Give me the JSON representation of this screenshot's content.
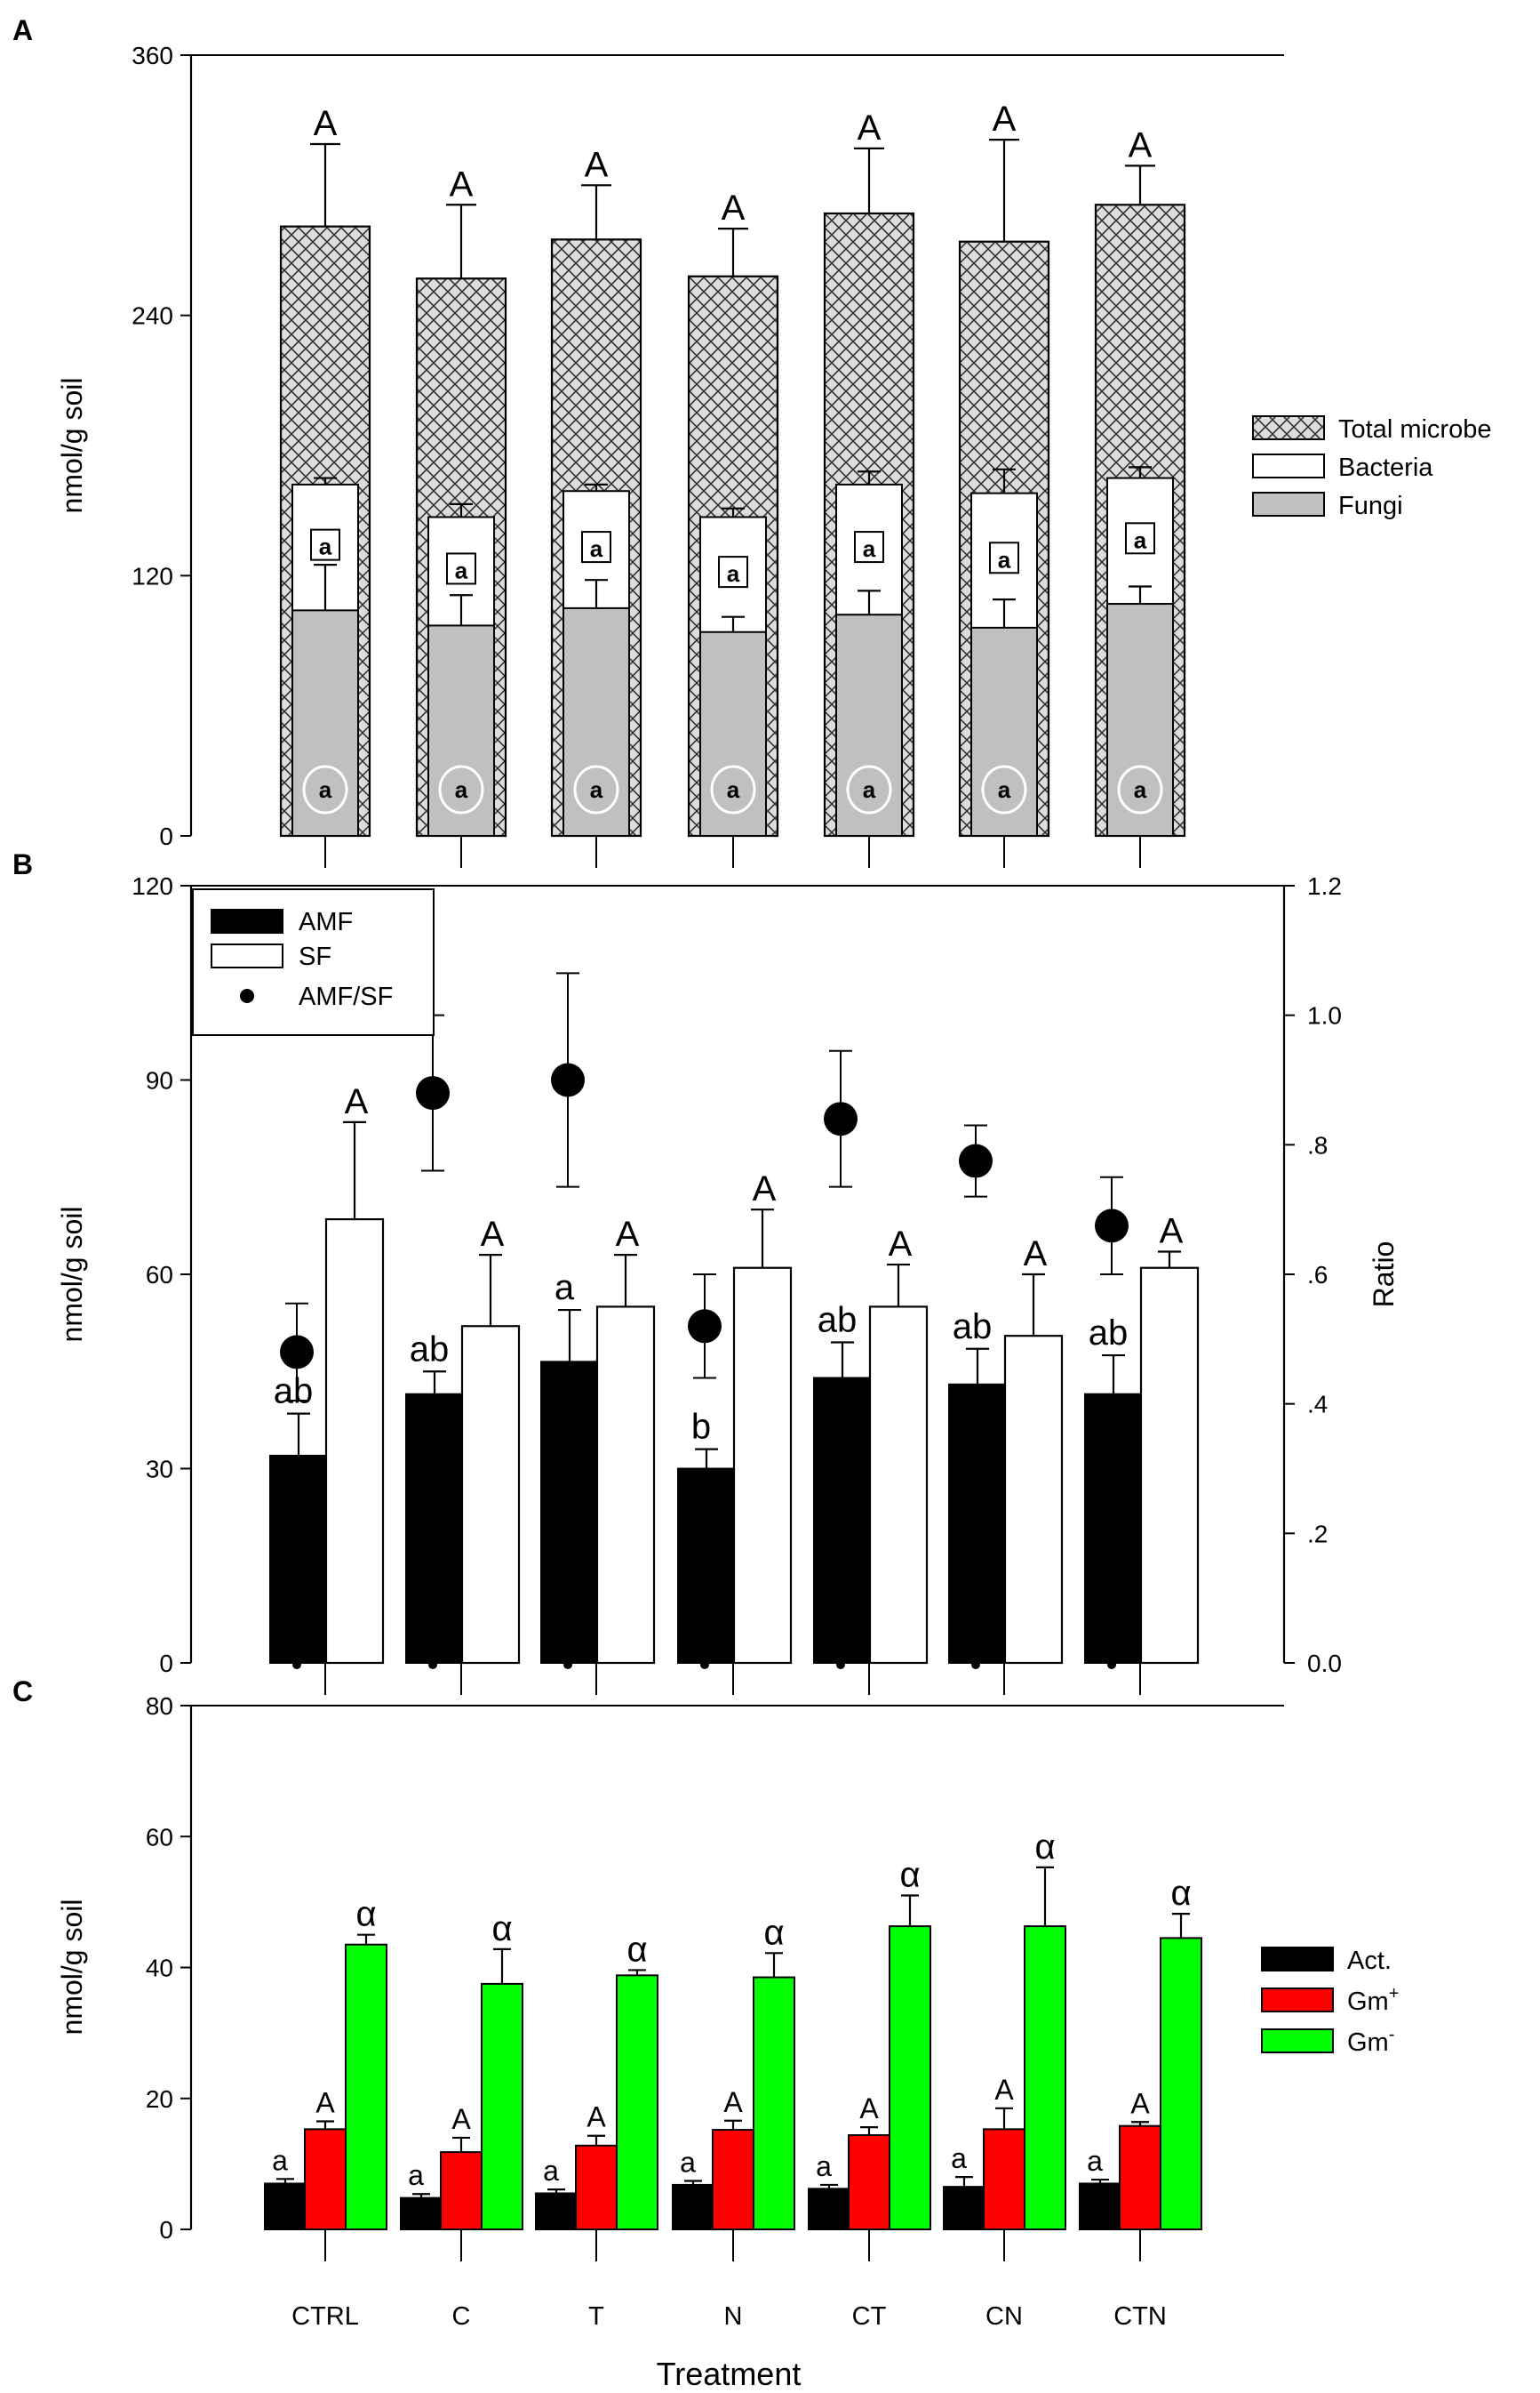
{
  "chart_data": [
    {
      "panel": "A",
      "type": "bar",
      "categories": [
        "CTRL",
        "C",
        "T",
        "N",
        "CT",
        "CN",
        "CTN"
      ],
      "ylabel": "nmol/g soil",
      "ylim": [
        0,
        360
      ],
      "yticks": [
        0,
        120,
        240,
        360
      ],
      "ytick_labels": [
        "0",
        "120",
        "240",
        "360"
      ],
      "series": [
        {
          "name": "Total microbe",
          "values": [
            281,
            257,
            275,
            258,
            287,
            274,
            291
          ],
          "errors": [
            38,
            34,
            25,
            22,
            30,
            47,
            18
          ],
          "letters": [
            "A",
            "A",
            "A",
            "A",
            "A",
            "A",
            "A"
          ],
          "color": "#d9d9d9",
          "pattern": "crosshatch"
        },
        {
          "name": "Bacteria",
          "values": [
            162,
            147,
            159,
            147,
            162,
            158,
            165
          ],
          "errors": [
            3,
            6,
            3,
            4,
            6,
            11,
            5
          ],
          "letters": [
            "a",
            "a",
            "a",
            "a",
            "a",
            "a",
            "a"
          ],
          "color": "#ffffff"
        },
        {
          "name": "Fungi",
          "values": [
            104,
            97,
            105,
            94,
            102,
            96,
            107
          ],
          "errors": [
            21,
            14,
            13,
            7,
            11,
            13,
            8
          ],
          "letters": [
            "a",
            "a",
            "a",
            "a",
            "a",
            "a",
            "a"
          ],
          "color": "#c0c0c0"
        }
      ],
      "legend": "right"
    },
    {
      "panel": "B",
      "type": "bar",
      "categories": [
        "CTRL",
        "C",
        "T",
        "N",
        "CT",
        "CN",
        "CTN"
      ],
      "ylabel": "nmol/g soil",
      "ylim": [
        0,
        120
      ],
      "yticks": [
        0,
        30,
        60,
        90,
        120
      ],
      "ytick_labels": [
        "0",
        "30",
        "60",
        "90",
        "120"
      ],
      "y2label": "Ratio",
      "y2lim": [
        0,
        1.2
      ],
      "y2ticks": [
        0,
        0.2,
        0.4,
        0.6,
        0.8,
        1.0,
        1.2
      ],
      "y2tick_labels": [
        "0.0",
        ".2",
        ".4",
        ".6",
        ".8",
        "1.0",
        "1.2"
      ],
      "series": [
        {
          "name": "AMF",
          "values": [
            32,
            41.5,
            46.5,
            30,
            44,
            43,
            41.5
          ],
          "errors": [
            6.5,
            3.5,
            8,
            3,
            5.5,
            5.5,
            6
          ],
          "letters": [
            "ab",
            "ab",
            "a",
            "b",
            "ab",
            "ab",
            "ab"
          ],
          "color": "#000000"
        },
        {
          "name": "SF",
          "values": [
            68.5,
            52,
            55,
            61,
            55,
            50.5,
            61
          ],
          "errors": [
            15,
            11,
            8,
            9,
            6.5,
            9.5,
            2.5
          ],
          "letters": [
            "A",
            "A",
            "A",
            "A",
            "A",
            "A",
            "A"
          ],
          "color": "#ffffff"
        },
        {
          "name": "AMF/SF",
          "axis": "right",
          "values": [
            0.48,
            0.88,
            0.9,
            0.52,
            0.84,
            0.775,
            0.675
          ],
          "errors": [
            0.075,
            0.12,
            0.165,
            0.08,
            0.105,
            0.055,
            0.075
          ],
          "color": "#000000"
        }
      ],
      "legend": "top-left"
    },
    {
      "panel": "C",
      "type": "bar",
      "categories": [
        "CTRL",
        "C",
        "T",
        "N",
        "CT",
        "CN",
        "CTN"
      ],
      "xlabel": "Treatment",
      "ylabel": "nmol/g soil",
      "ylim": [
        0,
        80
      ],
      "yticks": [
        0,
        20,
        40,
        60,
        80
      ],
      "ytick_labels": [
        "0",
        "20",
        "40",
        "60",
        "80"
      ],
      "series": [
        {
          "name": "Act.",
          "values": [
            7,
            4.8,
            5.5,
            6.8,
            6.2,
            6.5,
            7
          ],
          "errors": [
            0.7,
            0.6,
            0.6,
            0.6,
            0.6,
            1.5,
            0.6
          ],
          "letters": [
            "a",
            "a",
            "a",
            "a",
            "a",
            "a",
            "a"
          ],
          "color": "#000000"
        },
        {
          "name": "Gm+",
          "label_base": "Gm",
          "label_sup": "+",
          "values": [
            15.3,
            11.8,
            12.8,
            15.2,
            14.4,
            15.3,
            15.8
          ],
          "errors": [
            1.2,
            2.2,
            1.5,
            1.4,
            1.2,
            3.2,
            0.6
          ],
          "letters": [
            "A",
            "A",
            "A",
            "A",
            "A",
            "A",
            "A"
          ],
          "color": "#ff0000"
        },
        {
          "name": "Gm-",
          "label_base": "Gm",
          "label_sup": "-",
          "values": [
            43.5,
            37.5,
            38.8,
            38.5,
            46.3,
            46.3,
            44.5
          ],
          "errors": [
            1.5,
            5.3,
            0.8,
            3.7,
            4.7,
            9,
            3.7
          ],
          "letters": [
            "α",
            "α",
            "α",
            "α",
            "α",
            "α",
            "α"
          ],
          "color": "#00ff00"
        }
      ],
      "legend": "right"
    }
  ]
}
